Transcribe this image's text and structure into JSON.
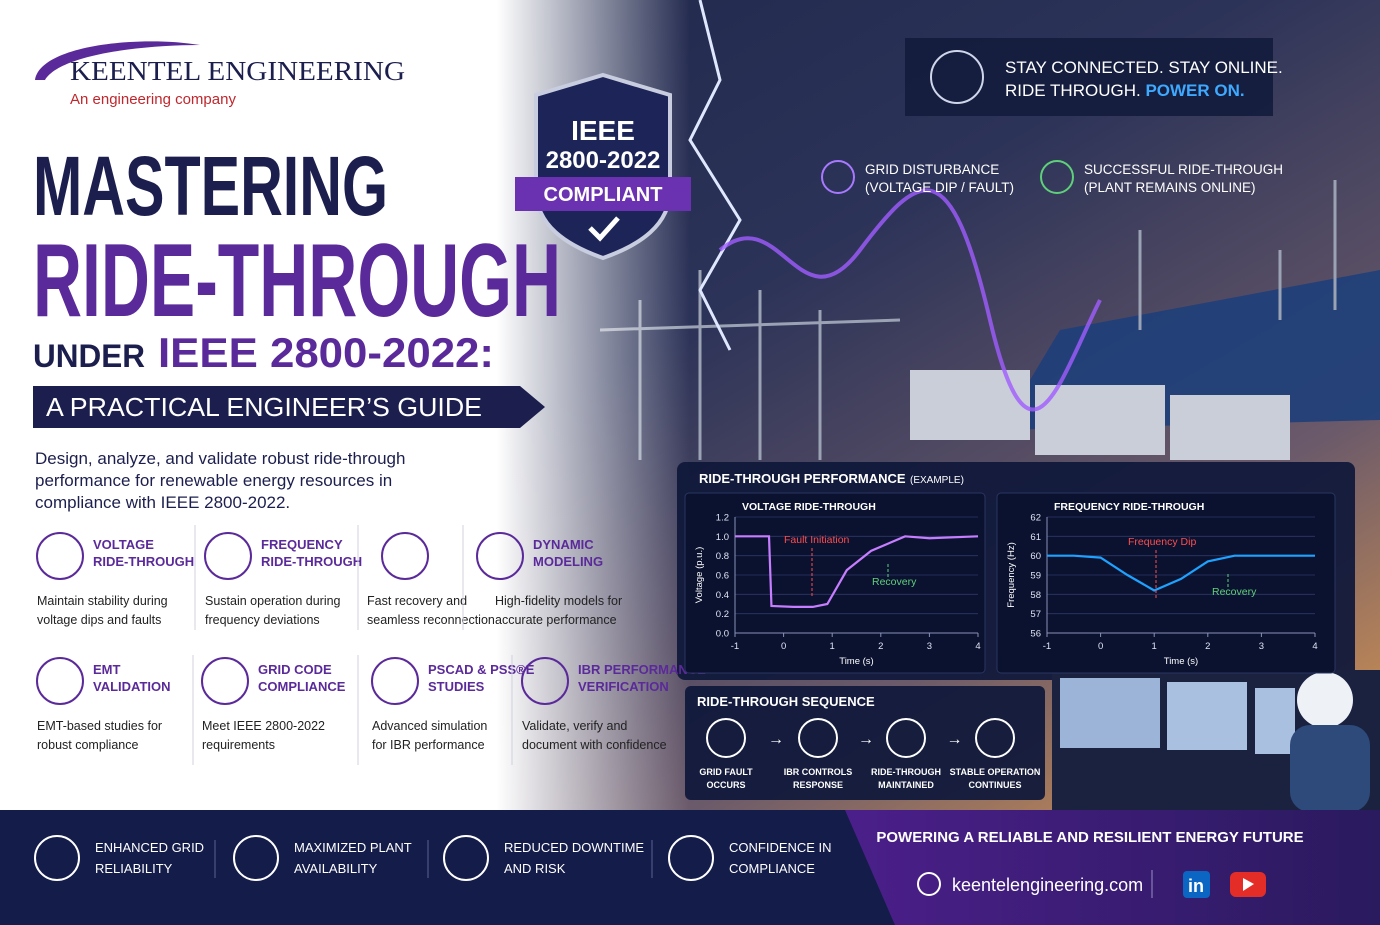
{
  "brand": {
    "name": "KEENTEL ENGINEERING",
    "tagline": "An engineering company"
  },
  "badge": {
    "line1": "IEEE",
    "line2": "2800-2022",
    "ribbon": "COMPLIANT"
  },
  "banner": {
    "line1": "STAY CONNECTED. STAY ONLINE.",
    "line2": "RIDE THROUGH.",
    "line2_highlight": "POWER ON."
  },
  "title": {
    "line1": "MASTERING",
    "line2": "RIDE-THROUGH",
    "line3": "UNDER",
    "line3_highlight": "IEEE 2800-2022:",
    "subtitle": "A PRACTICAL ENGINEER’S GUIDE"
  },
  "intro": [
    "Design, analyze, and validate robust ride-through",
    "performance for renewable energy resources in",
    "compliance with IEEE 2800-2022."
  ],
  "callouts": [
    {
      "lines": [
        "GRID DISTURBANCE",
        "(VOLTAGE DIP / FAULT)"
      ]
    },
    {
      "lines": [
        "SUCCESSFUL RIDE-THROUGH",
        "(PLANT REMAINS ONLINE)"
      ]
    }
  ],
  "features": [
    {
      "title": [
        "VOLTAGE",
        "RIDE-THROUGH"
      ],
      "text": [
        "Maintain stability during",
        "voltage dips and faults"
      ]
    },
    {
      "title": [
        "FREQUENCY",
        "RIDE-THROUGH"
      ],
      "text": [
        "Sustain operation during",
        "frequency deviations"
      ]
    },
    {
      "text": [
        "Fast recovery and",
        "seamless reconnection"
      ]
    },
    {
      "title": [
        "DYNAMIC",
        "MODELING"
      ],
      "text": [
        "High-fidelity models for",
        "accurate performance"
      ]
    },
    {
      "title": [
        "EMT",
        "VALIDATION"
      ],
      "text": [
        "EMT-based studies for",
        "robust compliance"
      ]
    },
    {
      "title": [
        "GRID CODE",
        "COMPLIANCE"
      ],
      "text": [
        "Meet IEEE 2800-2022",
        "requirements"
      ]
    },
    {
      "title": [
        "PSCAD & PSS®E",
        "STUDIES"
      ],
      "text": [
        "Advanced simulation",
        "for IBR performance"
      ]
    },
    {
      "title": [
        "IBR PERFORMANCE",
        "VERIFICATION"
      ],
      "text": [
        "Validate, verify and",
        "document with confidence"
      ]
    }
  ],
  "performance": {
    "title": "RIDE-THROUGH PERFORMANCE",
    "note": "(EXAMPLE)",
    "charts": [
      {
        "type": "line",
        "title": "VOLTAGE RIDE-THROUGH",
        "xlabel": "Time (s)",
        "ylabel": "Voltage (p.u.)",
        "color": "#c77dff",
        "x": [
          -1,
          -0.3,
          -0.25,
          0.2,
          0.6,
          0.9,
          1.3,
          1.8,
          2.5,
          3,
          4
        ],
        "values": [
          1.0,
          1.0,
          0.28,
          0.27,
          0.27,
          0.3,
          0.65,
          0.85,
          1.0,
          0.98,
          1.0
        ],
        "xlim": [
          -1,
          4
        ],
        "xticks": [
          -1,
          0,
          1,
          2,
          3,
          4
        ],
        "ylim": [
          0,
          1.2
        ],
        "yticks": [
          {
            "value": 0,
            "label": "0.0"
          },
          0.2,
          0.4,
          0.6,
          0.8,
          {
            "value": 1,
            "label": "1.0"
          },
          1.2
        ],
        "annotations": [
          "Fault Initiation",
          "Recovery"
        ]
      },
      {
        "type": "line",
        "title": "FREQUENCY RIDE-THROUGH",
        "xlabel": "Time (s)",
        "ylabel": "Frequency (Hz)",
        "color": "#1fa2ff",
        "x": [
          -1,
          -0.5,
          0,
          0.5,
          1,
          1.5,
          2,
          2.5,
          3,
          4
        ],
        "values": [
          60,
          60,
          59.9,
          59,
          58.2,
          58.8,
          59.7,
          60,
          60,
          60
        ],
        "xlim": [
          -1,
          4
        ],
        "xticks": [
          -1,
          0,
          1,
          2,
          3,
          4
        ],
        "ylim": [
          56,
          62
        ],
        "yticks": [
          56,
          57,
          58,
          59,
          60,
          61,
          62
        ],
        "annotations": [
          "Frequency Dip",
          "Recovery"
        ]
      }
    ]
  },
  "sequence": {
    "title": "RIDE-THROUGH SEQUENCE",
    "steps": [
      {
        "lines": [
          "GRID FAULT",
          "OCCURS"
        ]
      },
      {
        "lines": [
          "IBR CONTROLS",
          "RESPONSE"
        ]
      },
      {
        "lines": [
          "RIDE-THROUGH",
          "MAINTAINED"
        ]
      },
      {
        "lines": [
          "STABLE OPERATION",
          "CONTINUES"
        ]
      }
    ]
  },
  "benefits": [
    {
      "lines": [
        "ENHANCED GRID",
        "RELIABILITY"
      ]
    },
    {
      "lines": [
        "MAXIMIZED PLANT",
        "AVAILABILITY"
      ]
    },
    {
      "lines": [
        "REDUCED DOWNTIME",
        "AND RISK"
      ]
    },
    {
      "lines": [
        "CONFIDENCE IN",
        "COMPLIANCE"
      ]
    }
  ],
  "footer": {
    "tagline": "POWERING A RELIABLE AND RESILIENT ENERGY FUTURE",
    "website": "keentelengineering.com",
    "linkedin": "in"
  }
}
